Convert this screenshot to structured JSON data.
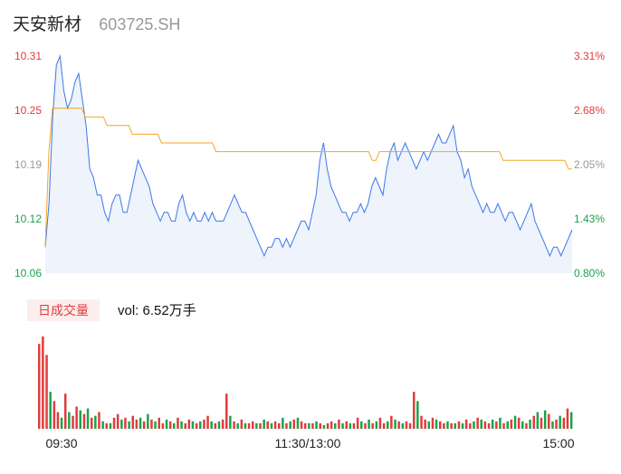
{
  "header": {
    "name": "天安新材",
    "code": "603725.SH"
  },
  "volume": {
    "tab_label": "日成交量",
    "readout": "vol: 6.52万手"
  },
  "colors": {
    "up": "#e23b3b",
    "down": "#1aa34a",
    "neutral": "#999999",
    "price_line": "#3b78e7",
    "avg_line": "#f5a623"
  },
  "chart_data": {
    "type": "line",
    "ylim": [
      10.06,
      10.31
    ],
    "y_ticks_left": [
      "10.31",
      "10.25",
      "10.19",
      "10.12",
      "10.06"
    ],
    "y_ticks_right": [
      "3.31%",
      "2.68%",
      "2.05%",
      "1.43%",
      "0.80%"
    ],
    "x_ticks": [
      "09:30",
      "11:30/13:00",
      "15:00"
    ],
    "series": [
      {
        "values": [
          10.09,
          10.14,
          10.24,
          10.3,
          10.31,
          10.27,
          10.25,
          10.26,
          10.28,
          10.29,
          10.26,
          10.23,
          10.18,
          10.17,
          10.15,
          10.15,
          10.13,
          10.12,
          10.14,
          10.15,
          10.15,
          10.13,
          10.13,
          10.15,
          10.17,
          10.19,
          10.18,
          10.17,
          10.16,
          10.14,
          10.13,
          10.12,
          10.13,
          10.13,
          10.12,
          10.12,
          10.14,
          10.15,
          10.13,
          10.12,
          10.13,
          10.12,
          10.12,
          10.13,
          10.12,
          10.13,
          10.12,
          10.12,
          10.12,
          10.13,
          10.14,
          10.15,
          10.14,
          10.13,
          10.13,
          10.12,
          10.11,
          10.1,
          10.09,
          10.08,
          10.09,
          10.09,
          10.1,
          10.1,
          10.09,
          10.1,
          10.09,
          10.1,
          10.11,
          10.12,
          10.12,
          10.11,
          10.13,
          10.15,
          10.19,
          10.21,
          10.18,
          10.16,
          10.15,
          10.14,
          10.13,
          10.13,
          10.12,
          10.13,
          10.13,
          10.14,
          10.13,
          10.14,
          10.16,
          10.17,
          10.16,
          10.15,
          10.18,
          10.2,
          10.21,
          10.19,
          10.2,
          10.21,
          10.2,
          10.19,
          10.18,
          10.19,
          10.2,
          10.19,
          10.2,
          10.21,
          10.22,
          10.21,
          10.21,
          10.22,
          10.23,
          10.2,
          10.19,
          10.17,
          10.18,
          10.16,
          10.15,
          10.14,
          10.13,
          10.14,
          10.13,
          10.13,
          10.14,
          10.13,
          10.12,
          10.13,
          10.13,
          10.12,
          10.11,
          10.12,
          10.13,
          10.14,
          10.12,
          10.11,
          10.1,
          10.09,
          10.08,
          10.09,
          10.09,
          10.08,
          10.09,
          10.1,
          10.11
        ],
        "color": "#3b78e7"
      },
      {
        "values": [
          10.09,
          10.2,
          10.25,
          10.25,
          10.25,
          10.25,
          10.25,
          10.25,
          10.25,
          10.25,
          10.25,
          10.24,
          10.24,
          10.24,
          10.24,
          10.24,
          10.24,
          10.23,
          10.23,
          10.23,
          10.23,
          10.23,
          10.23,
          10.23,
          10.22,
          10.22,
          10.22,
          10.22,
          10.22,
          10.22,
          10.22,
          10.22,
          10.21,
          10.21,
          10.21,
          10.21,
          10.21,
          10.21,
          10.21,
          10.21,
          10.21,
          10.21,
          10.21,
          10.21,
          10.21,
          10.21,
          10.21,
          10.2,
          10.2,
          10.2,
          10.2,
          10.2,
          10.2,
          10.2,
          10.2,
          10.2,
          10.2,
          10.2,
          10.2,
          10.2,
          10.2,
          10.2,
          10.2,
          10.2,
          10.2,
          10.2,
          10.2,
          10.2,
          10.2,
          10.2,
          10.2,
          10.2,
          10.2,
          10.2,
          10.2,
          10.2,
          10.2,
          10.2,
          10.2,
          10.2,
          10.2,
          10.2,
          10.2,
          10.2,
          10.2,
          10.2,
          10.2,
          10.2,
          10.2,
          10.2,
          10.19,
          10.19,
          10.2,
          10.2,
          10.2,
          10.2,
          10.2,
          10.2,
          10.2,
          10.2,
          10.2,
          10.2,
          10.2,
          10.2,
          10.2,
          10.2,
          10.2,
          10.2,
          10.2,
          10.2,
          10.2,
          10.2,
          10.2,
          10.2,
          10.2,
          10.2,
          10.2,
          10.2,
          10.2,
          10.2,
          10.2,
          10.2,
          10.2,
          10.2,
          10.2,
          10.2,
          10.19,
          10.19,
          10.19,
          10.19,
          10.19,
          10.19,
          10.19,
          10.19,
          10.19,
          10.19,
          10.19,
          10.19,
          10.19,
          10.19,
          10.19,
          10.19,
          10.19,
          10.19,
          10.18,
          10.18
        ],
        "color": "#f5a623"
      }
    ],
    "volume_bars": [
      92,
      100,
      80,
      40,
      30,
      18,
      12,
      38,
      18,
      14,
      24,
      20,
      16,
      22,
      12,
      14,
      18,
      8,
      6,
      6,
      12,
      16,
      10,
      12,
      8,
      14,
      10,
      12,
      8,
      16,
      10,
      8,
      12,
      6,
      10,
      8,
      6,
      12,
      8,
      6,
      10,
      8,
      6,
      8,
      10,
      14,
      8,
      6,
      8,
      10,
      38,
      14,
      8,
      6,
      10,
      6,
      6,
      8,
      6,
      6,
      10,
      8,
      6,
      8,
      6,
      12,
      6,
      8,
      10,
      12,
      8,
      6,
      6,
      6,
      8,
      6,
      4,
      6,
      8,
      6,
      10,
      6,
      8,
      6,
      6,
      12,
      8,
      6,
      10,
      6,
      8,
      12,
      6,
      8,
      14,
      10,
      8,
      6,
      8,
      6,
      40,
      30,
      14,
      10,
      8,
      12,
      10,
      8,
      6,
      8,
      6,
      6,
      8,
      6,
      10,
      6,
      8,
      12,
      10,
      8,
      6,
      10,
      8,
      12,
      6,
      8,
      10,
      14,
      12,
      8,
      6,
      10,
      14,
      18,
      12,
      20,
      16,
      8,
      10,
      14,
      12,
      22,
      18
    ],
    "volume_colors": [
      "up",
      "up",
      "up",
      "down",
      "up",
      "up",
      "down",
      "up",
      "down",
      "up",
      "up",
      "down",
      "up",
      "down",
      "up",
      "down",
      "up",
      "down",
      "up",
      "down",
      "up",
      "up",
      "down",
      "up",
      "down",
      "up",
      "up",
      "down",
      "up",
      "down",
      "up",
      "down",
      "up",
      "up",
      "down",
      "up",
      "down",
      "up",
      "down",
      "up",
      "up",
      "down",
      "up",
      "down",
      "up",
      "up",
      "down",
      "up",
      "down",
      "up",
      "up",
      "down",
      "up",
      "down",
      "up",
      "down",
      "up",
      "up",
      "down",
      "up",
      "down",
      "up",
      "down",
      "up",
      "up",
      "down",
      "up",
      "down",
      "up",
      "down",
      "up",
      "up",
      "down",
      "up",
      "down",
      "up",
      "down",
      "up",
      "up",
      "down",
      "up",
      "down",
      "up",
      "down",
      "up",
      "up",
      "down",
      "up",
      "down",
      "up",
      "down",
      "up",
      "up",
      "down",
      "up",
      "down",
      "up",
      "down",
      "up",
      "up",
      "up",
      "down",
      "up",
      "up",
      "down",
      "up",
      "down",
      "up",
      "up",
      "down",
      "up",
      "down",
      "up",
      "down",
      "up",
      "up",
      "down",
      "up",
      "down",
      "up",
      "up",
      "down",
      "up",
      "down",
      "up",
      "down",
      "up",
      "down",
      "up",
      "down",
      "up",
      "down",
      "up",
      "down",
      "up",
      "down",
      "up",
      "down",
      "up",
      "down",
      "up",
      "up",
      "down",
      "up"
    ]
  }
}
